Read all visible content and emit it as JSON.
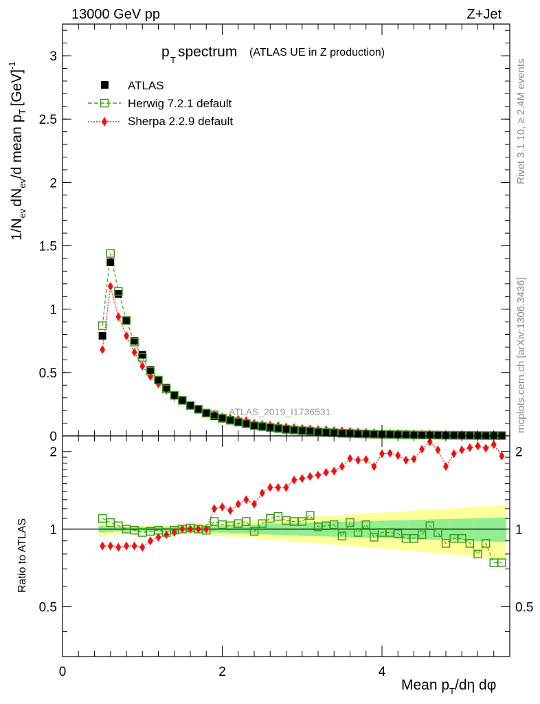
{
  "header": {
    "energy_label": "13000 GeV pp",
    "process_label": "Z+Jet"
  },
  "side": {
    "rivet_label": "Rivet 3.1.10, ≥ 2.4M events",
    "mcplots_label": "mcplots.cern.ch [arXiv:1306.3436]"
  },
  "chart_data": [
    {
      "type": "scatter",
      "panel": "main",
      "title_main": "p",
      "title_sub": "T",
      "title_word": "spectrum",
      "title_extra": "(ATLAS UE in Z production)",
      "watermark": "ATLAS_2019_I1736531",
      "ylabel": "1/N_ev dN_ev/d mean p_T [GeV]^-1",
      "ylabel_parts": {
        "a": "1/N",
        "b": "ev",
        "c": "dN",
        "d": "ev",
        "e": "/d mean p",
        "f": "T",
        "g": "[GeV]",
        "h": "-1"
      },
      "xlim": [
        0,
        5.6
      ],
      "ylim": [
        0,
        3.25
      ],
      "yticks": [
        0,
        0.5,
        1,
        1.5,
        2,
        2.5,
        3
      ],
      "ytick_labels": [
        "0",
        "0.5",
        "1",
        "1.5",
        "2",
        "2.5",
        "3"
      ],
      "legend_position": "top-left",
      "x": [
        0.5,
        0.6,
        0.7,
        0.8,
        0.9,
        1.0,
        1.1,
        1.2,
        1.3,
        1.4,
        1.5,
        1.6,
        1.7,
        1.8,
        1.9,
        2.0,
        2.1,
        2.2,
        2.3,
        2.4,
        2.5,
        2.6,
        2.7,
        2.8,
        2.9,
        3.0,
        3.1,
        3.2,
        3.3,
        3.4,
        3.5,
        3.6,
        3.7,
        3.8,
        3.9,
        4.0,
        4.1,
        4.2,
        4.3,
        4.4,
        4.5,
        4.6,
        4.7,
        4.8,
        4.9,
        5.0,
        5.1,
        5.2,
        5.3,
        5.4,
        5.5
      ],
      "series": [
        {
          "name": "ATLAS",
          "marker": "filled-square",
          "color": "#000000",
          "values": [
            0.79,
            1.37,
            1.12,
            0.91,
            0.75,
            0.64,
            0.52,
            0.44,
            0.38,
            0.32,
            0.28,
            0.24,
            0.21,
            0.18,
            0.155,
            0.135,
            0.12,
            0.105,
            0.092,
            0.08,
            0.07,
            0.062,
            0.055,
            0.048,
            0.043,
            0.038,
            0.034,
            0.03,
            0.027,
            0.024,
            0.021,
            0.019,
            0.017,
            0.015,
            0.014,
            0.012,
            0.011,
            0.01,
            0.009,
            0.008,
            0.007,
            0.0065,
            0.006,
            0.0055,
            0.005,
            0.0045,
            0.004,
            0.0037,
            0.0034,
            0.0031,
            0.0028
          ]
        },
        {
          "name": "Herwig 7.2.1 default",
          "marker": "open-square",
          "color": "#3a9a1a",
          "values": [
            0.87,
            1.44,
            1.14,
            0.91,
            0.74,
            0.62,
            0.51,
            0.44,
            0.37,
            0.32,
            0.28,
            0.24,
            0.21,
            0.18,
            0.165,
            0.14,
            0.124,
            0.11,
            0.098,
            0.08,
            0.074,
            0.066,
            0.06,
            0.052,
            0.046,
            0.041,
            0.038,
            0.031,
            0.028,
            0.025,
            0.02,
            0.019,
            0.016,
            0.015,
            0.013,
            0.012,
            0.011,
            0.0097,
            0.0087,
            0.0075,
            0.0066,
            0.0067,
            0.0058,
            0.0048,
            0.0046,
            0.0042,
            0.0035,
            0.003,
            0.0024,
            0.0028,
            0.0021
          ]
        },
        {
          "name": "Sherpa 2.2.9 default",
          "marker": "filled-diamond",
          "color": "#ee1111",
          "values": [
            0.68,
            1.18,
            0.94,
            0.79,
            0.66,
            0.55,
            0.47,
            0.41,
            0.36,
            0.31,
            0.28,
            0.24,
            0.21,
            0.18,
            0.17,
            0.15,
            0.14,
            0.13,
            0.12,
            0.1,
            0.09,
            0.085,
            0.08,
            0.07,
            0.065,
            0.06,
            0.055,
            0.05,
            0.048,
            0.042,
            0.04,
            0.035,
            0.032,
            0.028,
            0.025,
            0.023,
            0.021,
            0.019,
            0.017,
            0.015,
            0.014,
            0.013,
            0.012,
            0.011,
            0.0102,
            0.0092,
            0.0084,
            0.0077,
            0.007,
            0.0064,
            0.0058
          ]
        }
      ]
    },
    {
      "type": "scatter",
      "panel": "ratio",
      "ylabel": "Ratio to ATLAS",
      "xlabel": "Mean p_T/dη dφ",
      "xlabel_parts": {
        "a": "Mean p",
        "b": "T",
        "c": "/dη dφ"
      },
      "xlim": [
        0,
        5.6
      ],
      "ylim": [
        0.32,
        2.3
      ],
      "xticks": [
        0,
        2,
        4
      ],
      "xtick_labels": [
        "0",
        "2",
        "4"
      ],
      "yticks": [
        0.5,
        1,
        2
      ],
      "ytick_labels": [
        "0.5",
        "1",
        "2"
      ],
      "reference_line": 1,
      "x": [
        0.5,
        0.6,
        0.7,
        0.8,
        0.9,
        1.0,
        1.1,
        1.2,
        1.3,
        1.4,
        1.5,
        1.6,
        1.7,
        1.8,
        1.9,
        2.0,
        2.1,
        2.2,
        2.3,
        2.4,
        2.5,
        2.6,
        2.7,
        2.8,
        2.9,
        3.0,
        3.1,
        3.2,
        3.3,
        3.4,
        3.5,
        3.6,
        3.7,
        3.8,
        3.9,
        4.0,
        4.1,
        4.2,
        4.3,
        4.4,
        4.5,
        4.6,
        4.7,
        4.8,
        4.9,
        5.0,
        5.1,
        5.2,
        5.3,
        5.4,
        5.5
      ],
      "bands": {
        "stat_half_width": [
          0.03,
          0.025,
          0.02,
          0.02,
          0.02,
          0.02,
          0.02,
          0.02,
          0.02,
          0.02,
          0.02,
          0.022,
          0.025,
          0.028,
          0.03,
          0.032,
          0.035,
          0.038,
          0.04,
          0.042,
          0.045,
          0.048,
          0.05,
          0.052,
          0.055,
          0.058,
          0.06,
          0.062,
          0.064,
          0.066,
          0.068,
          0.07,
          0.072,
          0.074,
          0.076,
          0.078,
          0.08,
          0.082,
          0.084,
          0.086,
          0.088,
          0.09,
          0.092,
          0.094,
          0.096,
          0.098,
          0.1,
          0.102,
          0.104,
          0.106,
          0.108
        ],
        "total_half_width": [
          0.06,
          0.05,
          0.04,
          0.035,
          0.032,
          0.03,
          0.03,
          0.03,
          0.03,
          0.032,
          0.035,
          0.04,
          0.045,
          0.05,
          0.055,
          0.06,
          0.065,
          0.07,
          0.075,
          0.08,
          0.085,
          0.09,
          0.095,
          0.1,
          0.105,
          0.11,
          0.115,
          0.12,
          0.125,
          0.13,
          0.135,
          0.14,
          0.145,
          0.15,
          0.155,
          0.16,
          0.165,
          0.17,
          0.175,
          0.18,
          0.185,
          0.19,
          0.195,
          0.2,
          0.205,
          0.21,
          0.215,
          0.22,
          0.225,
          0.23,
          0.235
        ],
        "stat_color": "#90ee90",
        "total_color": "#ffff99"
      },
      "series": [
        {
          "name": "Herwig 7.2.1 default",
          "marker": "open-square",
          "color": "#3a9a1a",
          "values": [
            1.1,
            1.06,
            1.03,
            1.0,
            0.99,
            0.97,
            0.98,
            0.99,
            0.97,
            0.99,
            1.0,
            1.01,
            1.0,
            0.99,
            1.07,
            1.04,
            1.03,
            1.05,
            1.07,
            0.98,
            1.05,
            1.1,
            1.12,
            1.08,
            1.07,
            1.07,
            1.13,
            1.02,
            1.03,
            1.04,
            0.94,
            1.06,
            0.97,
            1.04,
            0.93,
            0.97,
            0.97,
            0.96,
            0.92,
            0.92,
            0.95,
            1.03,
            0.97,
            0.88,
            0.92,
            0.92,
            0.88,
            0.8,
            0.88,
            0.74,
            0.74
          ]
        },
        {
          "name": "Sherpa 2.2.9 default",
          "marker": "filled-diamond",
          "color": "#ee1111",
          "values": [
            0.86,
            0.86,
            0.85,
            0.86,
            0.86,
            0.85,
            0.9,
            0.93,
            0.95,
            0.97,
            1.0,
            1.0,
            1.0,
            1.0,
            1.2,
            1.22,
            1.18,
            1.25,
            1.3,
            1.25,
            1.38,
            1.45,
            1.45,
            1.45,
            1.55,
            1.57,
            1.6,
            1.62,
            1.66,
            1.68,
            1.75,
            1.88,
            1.85,
            1.86,
            1.75,
            1.96,
            1.97,
            1.93,
            1.85,
            1.87,
            2.04,
            2.18,
            2.03,
            1.75,
            1.96,
            2.03,
            2.07,
            2.1,
            2.06,
            2.13,
            1.92
          ]
        }
      ]
    }
  ]
}
